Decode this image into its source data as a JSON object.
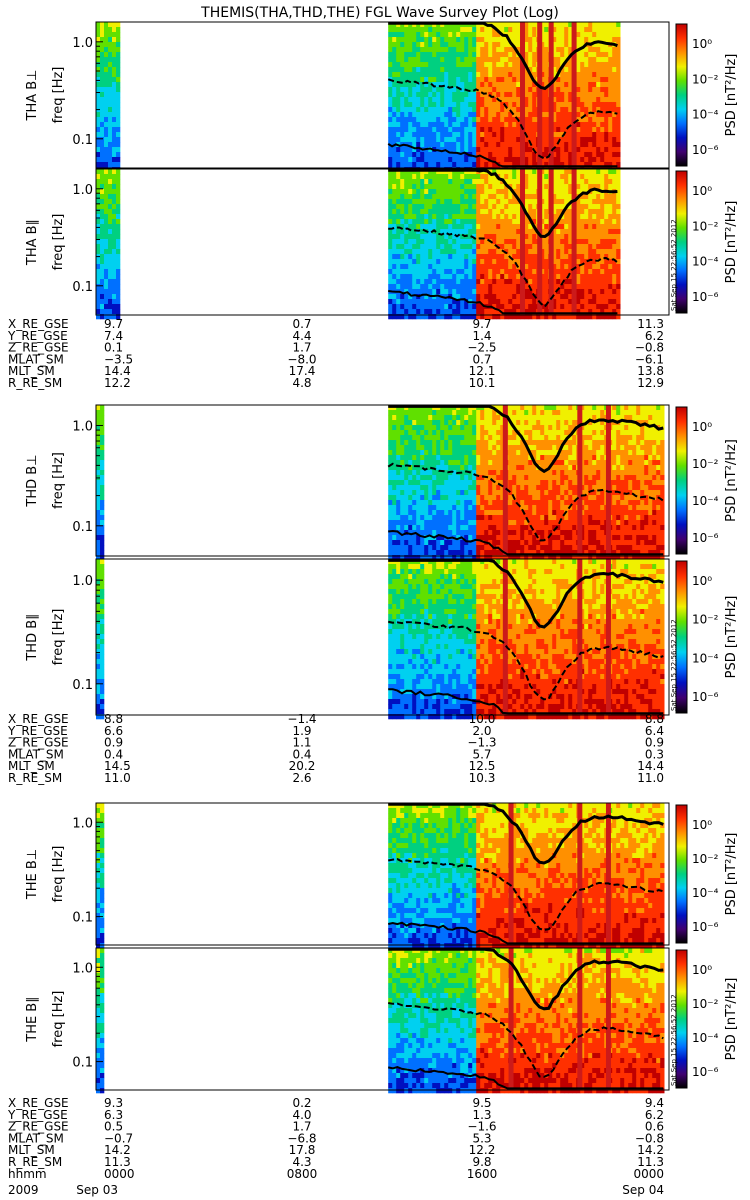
{
  "title": "THEMIS(THA,THD,THE) FGL Wave Survey Plot (Log)",
  "stamp": "Sat Sep 15 22:56:52 2012",
  "colors": {
    "stripe_red": "#cc1a1a",
    "trace": "#000000"
  },
  "chart_data": {
    "type": "heatmap",
    "yaxis": {
      "label": "freq [Hz]",
      "ticks": [
        "0.1",
        "1.0"
      ],
      "scale": "log",
      "range_hz": [
        0.05,
        1.6
      ]
    },
    "colorbar": {
      "label": "PSD [nT²/Hz]",
      "ticks": [
        "10⁰",
        "10⁻²",
        "10⁻⁴",
        "10⁻⁶"
      ],
      "scale": "log",
      "colors": [
        "#000000",
        "#400070",
        "#0010c0",
        "#0070ff",
        "#00d0f0",
        "#00d080",
        "#60e000",
        "#f0f000",
        "#ff9000",
        "#ff3000",
        "#c00000"
      ]
    },
    "panels": [
      {
        "probe": "THA",
        "label": "THA B⊥",
        "stamp": false,
        "coverage": [
          [
            0.0,
            0.04
          ],
          [
            0.51,
            0.91
          ]
        ],
        "stripes": [
          0.74,
          0.77,
          0.79,
          0.83
        ]
      },
      {
        "probe": "THA",
        "label": "THA B∥",
        "stamp": true,
        "coverage": [
          [
            0.0,
            0.04
          ],
          [
            0.51,
            0.91
          ]
        ],
        "stripes": [
          0.74,
          0.77,
          0.79,
          0.83
        ]
      },
      {
        "probe": "THD",
        "label": "THD B⊥",
        "stamp": false,
        "coverage": [
          [
            0.0,
            0.01
          ],
          [
            0.51,
            0.99
          ]
        ],
        "stripes": [
          0.71,
          0.84,
          0.89
        ]
      },
      {
        "probe": "THD",
        "label": "THD B∥",
        "stamp": true,
        "coverage": [
          [
            0.0,
            0.01
          ],
          [
            0.51,
            0.99
          ]
        ],
        "stripes": [
          0.71,
          0.84,
          0.89
        ]
      },
      {
        "probe": "THE",
        "label": "THE B⊥",
        "stamp": false,
        "coverage": [
          [
            0.0,
            0.01
          ],
          [
            0.51,
            0.99
          ]
        ],
        "stripes": [
          0.72,
          0.84,
          0.89
        ]
      },
      {
        "probe": "THE",
        "label": "THE B∥",
        "stamp": true,
        "coverage": [
          [
            0.0,
            0.01
          ],
          [
            0.51,
            0.99
          ]
        ],
        "stripes": [
          0.72,
          0.84,
          0.89
        ]
      }
    ],
    "ephemeris": [
      {
        "probe": "THA",
        "rows": [
          {
            "name": "X_RE_GSE",
            "values": [
              "9.7",
              "0.7",
              "9.7",
              "11.3"
            ]
          },
          {
            "name": "Y_RE_GSE",
            "values": [
              "7.4",
              "4.4",
              "1.4",
              "6.2"
            ]
          },
          {
            "name": "Z_RE_GSE",
            "values": [
              "0.1",
              "1.7",
              "−2.5",
              "−0.8"
            ]
          },
          {
            "name": "MLAT_SM",
            "values": [
              "−3.5",
              "−8.0",
              "0.7",
              "−6.1"
            ]
          },
          {
            "name": "MLT_SM",
            "values": [
              "14.4",
              "17.4",
              "12.1",
              "13.8"
            ]
          },
          {
            "name": "R_RE_SM",
            "values": [
              "12.2",
              "4.8",
              "10.1",
              "12.9"
            ]
          }
        ]
      },
      {
        "probe": "THD",
        "rows": [
          {
            "name": "X_RE_GSE",
            "values": [
              "8.8",
              "−1.4",
              "10.0",
              "8.8"
            ]
          },
          {
            "name": "Y_RE_GSE",
            "values": [
              "6.6",
              "1.9",
              "2.0",
              "6.4"
            ]
          },
          {
            "name": "Z_RE_GSE",
            "values": [
              "0.9",
              "1.1",
              "−1.3",
              "0.9"
            ]
          },
          {
            "name": "MLAT_SM",
            "values": [
              "0.4",
              "0.4",
              "5.7",
              "0.3"
            ]
          },
          {
            "name": "MLT_SM",
            "values": [
              "14.5",
              "20.2",
              "12.5",
              "14.4"
            ]
          },
          {
            "name": "R_RE_SM",
            "values": [
              "11.0",
              "2.6",
              "10.3",
              "11.0"
            ]
          }
        ]
      },
      {
        "probe": "THE",
        "rows": [
          {
            "name": "X_RE_GSE",
            "values": [
              "9.3",
              "0.2",
              "9.5",
              "9.4"
            ]
          },
          {
            "name": "Y_RE_GSE",
            "values": [
              "6.3",
              "4.0",
              "1.3",
              "6.2"
            ]
          },
          {
            "name": "Z_RE_GSE",
            "values": [
              "0.5",
              "1.7",
              "−1.6",
              "0.6"
            ]
          },
          {
            "name": "MLAT_SM",
            "values": [
              "−0.7",
              "−6.8",
              "5.3",
              "−0.8"
            ]
          },
          {
            "name": "MLT_SM",
            "values": [
              "14.2",
              "17.8",
              "12.2",
              "14.2"
            ]
          },
          {
            "name": "R_RE_SM",
            "values": [
              "11.3",
              "4.3",
              "9.8",
              "11.3"
            ]
          },
          {
            "name": "hhmm",
            "values": [
              "0000",
              "0800",
              "1600",
              "0000"
            ]
          }
        ]
      }
    ],
    "dates": {
      "start_year": "2009",
      "start": "Sep 03",
      "end": "Sep 04"
    }
  }
}
